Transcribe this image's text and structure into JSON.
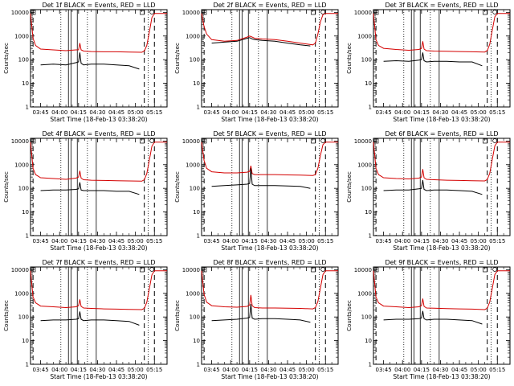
{
  "chart_data": [
    {
      "type": "line",
      "title": "Det 1f BLACK = Events, RED = LLD",
      "xlabel": "Start Time (18-Feb-13 03:38:20)",
      "ylabel": "Counts/sec",
      "xticks": [
        "03:45",
        "04:00",
        "04:15",
        "04:30",
        "04:45",
        "05:00",
        "05:15"
      ],
      "yticks": [
        "1",
        "10",
        "100",
        "1000",
        "10000"
      ],
      "yscale": "log",
      "ylim": [
        1,
        13000
      ],
      "xlim_minutes": [
        -8,
        100
      ],
      "series": [
        {
          "name": "LLD",
          "color": "#d40000",
          "x": [
            -8,
            -6,
            -4,
            0,
            10,
            20,
            28,
            30,
            31,
            32,
            34,
            40,
            50,
            60,
            70,
            80,
            82,
            84,
            86,
            88,
            90,
            100
          ],
          "y": [
            9000,
            800,
            400,
            280,
            260,
            240,
            260,
            260,
            500,
            260,
            230,
            220,
            215,
            215,
            210,
            205,
            230,
            400,
            1500,
            6000,
            9000,
            9000
          ]
        },
        {
          "name": "Events",
          "color": "#000000",
          "x": [
            0,
            10,
            20,
            28,
            30,
            31,
            32,
            34,
            40,
            50,
            60,
            70,
            78
          ],
          "y": [
            60,
            65,
            60,
            75,
            80,
            200,
            70,
            60,
            65,
            65,
            60,
            55,
            40
          ]
        }
      ]
    },
    {
      "type": "line",
      "title": "Det 2f BLACK = Events, RED = LLD",
      "xlabel": "Start Time (18-Feb-13 03:38:20)",
      "ylabel": "Counts/sec",
      "xticks": [
        "03:45",
        "04:00",
        "04:15",
        "04:30",
        "04:45",
        "05:00",
        "05:15"
      ],
      "yticks": [
        "1",
        "10",
        "100",
        "1000",
        "10000"
      ],
      "yscale": "log",
      "ylim": [
        1,
        13000
      ],
      "xlim_minutes": [
        -8,
        100
      ],
      "series": [
        {
          "name": "LLD",
          "color": "#d40000",
          "x": [
            -8,
            -6,
            -4,
            0,
            10,
            20,
            28,
            30,
            32,
            34,
            40,
            50,
            60,
            70,
            80,
            82,
            84,
            86,
            88,
            90,
            100
          ],
          "y": [
            9000,
            2500,
            1200,
            700,
            600,
            650,
            900,
            1000,
            900,
            800,
            750,
            700,
            600,
            500,
            420,
            500,
            1200,
            4000,
            8000,
            9000,
            9000
          ]
        },
        {
          "name": "Events",
          "color": "#000000",
          "x": [
            0,
            10,
            20,
            28,
            30,
            32,
            34,
            40,
            50,
            60,
            70,
            78
          ],
          "y": [
            500,
            550,
            600,
            800,
            850,
            750,
            700,
            650,
            600,
            500,
            420,
            380
          ]
        }
      ]
    },
    {
      "type": "line",
      "title": "Det 3f BLACK = Events, RED = LLD",
      "xlabel": "Start Time (18-Feb-13 03:38:20)",
      "ylabel": "Counts/sec",
      "xticks": [
        "03:45",
        "04:00",
        "04:15",
        "04:30",
        "04:45",
        "05:00",
        "05:15"
      ],
      "yticks": [
        "1",
        "10",
        "100",
        "1000",
        "10000"
      ],
      "yscale": "log",
      "ylim": [
        1,
        13000
      ],
      "xlim_minutes": [
        -8,
        100
      ],
      "series": [
        {
          "name": "LLD",
          "color": "#d40000",
          "x": [
            -8,
            -6,
            -4,
            0,
            10,
            20,
            28,
            30,
            31,
            32,
            34,
            40,
            50,
            60,
            70,
            80,
            82,
            84,
            86,
            88,
            90,
            100
          ],
          "y": [
            9000,
            700,
            400,
            300,
            270,
            250,
            270,
            300,
            600,
            280,
            240,
            230,
            225,
            220,
            215,
            210,
            240,
            450,
            1800,
            6500,
            9000,
            9000
          ]
        },
        {
          "name": "Events",
          "color": "#000000",
          "x": [
            0,
            10,
            20,
            28,
            30,
            31,
            32,
            34,
            40,
            50,
            60,
            70,
            78
          ],
          "y": [
            85,
            90,
            85,
            95,
            100,
            200,
            90,
            80,
            85,
            85,
            80,
            80,
            55
          ]
        }
      ]
    },
    {
      "type": "line",
      "title": "Det 4f BLACK = Events, RED = LLD",
      "xlabel": "Start Time (18-Feb-13 03:38:20)",
      "ylabel": "Counts/sec",
      "xticks": [
        "03:45",
        "04:00",
        "04:15",
        "04:30",
        "04:45",
        "05:00",
        "05:15"
      ],
      "yticks": [
        "1",
        "10",
        "100",
        "1000",
        "10000"
      ],
      "yscale": "log",
      "ylim": [
        1,
        13000
      ],
      "xlim_minutes": [
        -8,
        100
      ],
      "series": [
        {
          "name": "LLD",
          "color": "#d40000",
          "x": [
            -8,
            -6,
            -4,
            0,
            10,
            20,
            28,
            30,
            31,
            32,
            34,
            40,
            50,
            60,
            70,
            80,
            82,
            84,
            86,
            88,
            90,
            100
          ],
          "y": [
            9000,
            700,
            380,
            280,
            260,
            240,
            270,
            300,
            550,
            270,
            230,
            220,
            215,
            210,
            205,
            200,
            230,
            420,
            1600,
            6000,
            9000,
            9000
          ]
        },
        {
          "name": "Events",
          "color": "#000000",
          "x": [
            0,
            10,
            20,
            28,
            30,
            31,
            32,
            34,
            40,
            50,
            60,
            70,
            78
          ],
          "y": [
            80,
            85,
            85,
            90,
            95,
            180,
            85,
            80,
            80,
            80,
            75,
            75,
            55
          ]
        }
      ]
    },
    {
      "type": "line",
      "title": "Det 5f BLACK = Events, RED = LLD",
      "xlabel": "Start Time (18-Feb-13 03:38:20)",
      "ylabel": "Counts/sec",
      "xticks": [
        "03:45",
        "04:00",
        "04:15",
        "04:30",
        "04:45",
        "05:00",
        "05:15"
      ],
      "yticks": [
        "1",
        "10",
        "100",
        "1000",
        "10000"
      ],
      "yscale": "log",
      "ylim": [
        1,
        13000
      ],
      "xlim_minutes": [
        -8,
        100
      ],
      "series": [
        {
          "name": "LLD",
          "color": "#d40000",
          "x": [
            -8,
            -6,
            -4,
            0,
            10,
            20,
            28,
            30,
            31,
            32,
            34,
            40,
            50,
            60,
            70,
            80,
            82,
            84,
            86,
            88,
            90,
            100
          ],
          "y": [
            9000,
            1500,
            700,
            500,
            450,
            450,
            480,
            520,
            900,
            420,
            380,
            380,
            380,
            370,
            360,
            350,
            380,
            700,
            2500,
            7000,
            9000,
            9000
          ]
        },
        {
          "name": "Events",
          "color": "#000000",
          "x": [
            0,
            10,
            20,
            28,
            30,
            31,
            32,
            34,
            40,
            50,
            60,
            70,
            78
          ],
          "y": [
            120,
            130,
            140,
            150,
            160,
            700,
            150,
            130,
            130,
            130,
            125,
            120,
            100
          ]
        }
      ]
    },
    {
      "type": "line",
      "title": "Det 6f BLACK = Events, RED = LLD",
      "xlabel": "Start Time (18-Feb-13 03:38:20)",
      "ylabel": "Counts/sec",
      "xticks": [
        "03:45",
        "04:00",
        "04:15",
        "04:30",
        "04:45",
        "05:00",
        "05:15"
      ],
      "yticks": [
        "1",
        "10",
        "100",
        "1000",
        "10000"
      ],
      "yscale": "log",
      "ylim": [
        1,
        13000
      ],
      "xlim_minutes": [
        -8,
        100
      ],
      "series": [
        {
          "name": "LLD",
          "color": "#d40000",
          "x": [
            -8,
            -6,
            -4,
            0,
            10,
            20,
            28,
            30,
            31,
            32,
            34,
            40,
            50,
            60,
            70,
            80,
            82,
            84,
            86,
            88,
            90,
            100
          ],
          "y": [
            9000,
            700,
            380,
            280,
            260,
            250,
            270,
            300,
            650,
            280,
            240,
            230,
            220,
            215,
            210,
            205,
            235,
            430,
            1700,
            6200,
            9000,
            9000
          ]
        },
        {
          "name": "Events",
          "color": "#000000",
          "x": [
            0,
            10,
            20,
            28,
            30,
            31,
            32,
            34,
            40,
            50,
            60,
            70,
            78
          ],
          "y": [
            80,
            85,
            85,
            95,
            100,
            220,
            90,
            80,
            85,
            85,
            80,
            75,
            55
          ]
        }
      ]
    },
    {
      "type": "line",
      "title": "Det 7f BLACK = Events, RED = LLD",
      "xlabel": "Start Time (18-Feb-13 03:38:20)",
      "ylabel": "Counts/sec",
      "xticks": [
        "03:45",
        "04:00",
        "04:15",
        "04:30",
        "04:45",
        "05:00",
        "05:15"
      ],
      "yticks": [
        "1",
        "10",
        "100",
        "1000",
        "10000"
      ],
      "yscale": "log",
      "ylim": [
        1,
        13000
      ],
      "xlim_minutes": [
        -8,
        100
      ],
      "series": [
        {
          "name": "LLD",
          "color": "#d40000",
          "x": [
            -8,
            -6,
            -4,
            0,
            10,
            20,
            28,
            30,
            31,
            32,
            34,
            40,
            50,
            60,
            70,
            80,
            82,
            84,
            86,
            88,
            90,
            100
          ],
          "y": [
            9000,
            700,
            400,
            290,
            270,
            250,
            270,
            300,
            550,
            280,
            240,
            230,
            220,
            215,
            210,
            205,
            230,
            420,
            1600,
            6000,
            9000,
            9000
          ]
        },
        {
          "name": "Events",
          "color": "#000000",
          "x": [
            0,
            10,
            20,
            28,
            30,
            31,
            32,
            34,
            40,
            50,
            60,
            70,
            78
          ],
          "y": [
            70,
            75,
            75,
            80,
            85,
            170,
            80,
            70,
            75,
            75,
            70,
            65,
            45
          ]
        }
      ]
    },
    {
      "type": "line",
      "title": "Det 8f BLACK = Events, RED = LLD",
      "xlabel": "Start Time (18-Feb-13 03:38:20)",
      "ylabel": "Counts/sec",
      "xticks": [
        "03:45",
        "04:00",
        "04:15",
        "04:30",
        "04:45",
        "05:00",
        "05:15"
      ],
      "yticks": [
        "1",
        "10",
        "100",
        "1000",
        "10000"
      ],
      "yscale": "log",
      "ylim": [
        1,
        13000
      ],
      "xlim_minutes": [
        -8,
        100
      ],
      "series": [
        {
          "name": "LLD",
          "color": "#d40000",
          "x": [
            -8,
            -6,
            -4,
            0,
            10,
            20,
            28,
            30,
            31,
            32,
            34,
            40,
            50,
            60,
            70,
            80,
            82,
            84,
            86,
            88,
            90,
            100
          ],
          "y": [
            9000,
            900,
            420,
            300,
            270,
            260,
            280,
            320,
            850,
            300,
            250,
            240,
            240,
            235,
            230,
            220,
            250,
            450,
            1700,
            6200,
            9000,
            9000
          ]
        },
        {
          "name": "Events",
          "color": "#000000",
          "x": [
            0,
            10,
            20,
            28,
            30,
            31,
            32,
            34,
            40,
            50,
            60,
            70,
            78
          ],
          "y": [
            70,
            75,
            80,
            90,
            95,
            350,
            90,
            80,
            85,
            85,
            80,
            75,
            60
          ]
        }
      ]
    },
    {
      "type": "line",
      "title": "Det 9f BLACK = Events, RED = LLD",
      "xlabel": "Start Time (18-Feb-13 03:38:20)",
      "ylabel": "Counts/sec",
      "xticks": [
        "03:45",
        "04:00",
        "04:15",
        "04:30",
        "04:45",
        "05:00",
        "05:15"
      ],
      "yticks": [
        "1",
        "10",
        "100",
        "1000",
        "10000"
      ],
      "yscale": "log",
      "ylim": [
        1,
        13000
      ],
      "xlim_minutes": [
        -8,
        100
      ],
      "series": [
        {
          "name": "LLD",
          "color": "#d40000",
          "x": [
            -8,
            -6,
            -4,
            0,
            10,
            20,
            28,
            30,
            31,
            32,
            34,
            40,
            50,
            60,
            70,
            80,
            82,
            84,
            86,
            88,
            90,
            100
          ],
          "y": [
            9000,
            700,
            400,
            290,
            270,
            250,
            270,
            300,
            600,
            280,
            240,
            235,
            225,
            220,
            215,
            205,
            235,
            430,
            1650,
            6200,
            9000,
            9000
          ]
        },
        {
          "name": "Events",
          "color": "#000000",
          "x": [
            0,
            10,
            20,
            28,
            30,
            31,
            32,
            34,
            40,
            50,
            60,
            70,
            78
          ],
          "y": [
            75,
            80,
            80,
            85,
            90,
            180,
            85,
            75,
            80,
            80,
            75,
            70,
            50
          ]
        }
      ]
    }
  ],
  "markers": {
    "dashed_minutes": [
      -6,
      82,
      90
    ],
    "dotted_minutes": [
      16,
      37,
      85
    ],
    "solid_minutes": [
      22,
      24,
      29,
      44
    ]
  }
}
